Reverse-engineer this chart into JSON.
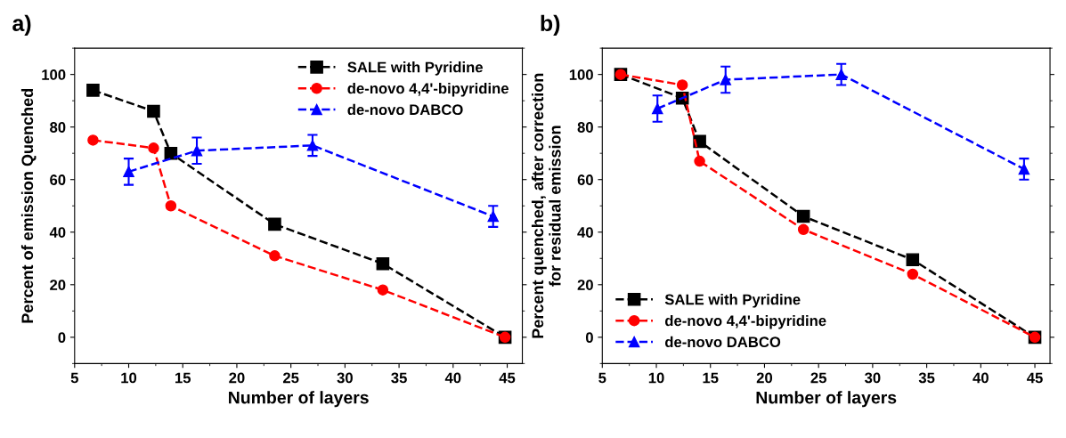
{
  "chart_data": [
    {
      "type": "line",
      "title": "a)",
      "xlabel": "Number of layers",
      "ylabel": "Percent of emission Quenched",
      "xlim": [
        5,
        46.4
      ],
      "xticks": [
        5,
        10,
        15,
        20,
        25,
        30,
        35,
        40,
        45
      ],
      "ylim": [
        -10,
        110
      ],
      "yticks": [
        0,
        20,
        40,
        60,
        80,
        100
      ],
      "legend": "top right",
      "line_style": "dashed",
      "grid": false,
      "series": [
        {
          "name": "SALE with Pyridine",
          "color": "#000000",
          "marker": "square",
          "x": [
            6.7,
            12.3,
            13.9,
            23.5,
            33.5,
            44.8
          ],
          "values": [
            94,
            86,
            70,
            43,
            28,
            0
          ]
        },
        {
          "name": "de-novo 4,4'-bipyridine",
          "color": "#ff0000",
          "marker": "circle",
          "x": [
            6.7,
            12.3,
            13.9,
            23.5,
            33.5,
            44.8
          ],
          "values": [
            75,
            72,
            50,
            31,
            18,
            0
          ]
        },
        {
          "name": "de-novo DABCO",
          "color": "#0000ff",
          "marker": "triangle",
          "x": [
            10.0,
            16.3,
            27.0,
            43.7
          ],
          "values": [
            63,
            71,
            73,
            46
          ],
          "errors": [
            5,
            5,
            4,
            4
          ]
        }
      ]
    },
    {
      "type": "line",
      "title": "b)",
      "xlabel": "Number of layers",
      "ylabel": "Percent quenched, after correction\nfor residual emission",
      "xlim": [
        5,
        46.4
      ],
      "xticks": [
        5,
        10,
        15,
        20,
        25,
        30,
        35,
        40,
        45
      ],
      "ylim": [
        -10,
        110
      ],
      "yticks": [
        0,
        20,
        40,
        60,
        80,
        100
      ],
      "legend": "bottom left",
      "line_style": "dashed",
      "grid": false,
      "series": [
        {
          "name": "SALE with Pyridine",
          "color": "#000000",
          "marker": "square",
          "x": [
            6.7,
            12.4,
            14.0,
            23.6,
            33.7,
            45.0
          ],
          "values": [
            100,
            91,
            74.5,
            46,
            29.5,
            0
          ]
        },
        {
          "name": "de-novo 4,4'-bipyridine",
          "color": "#ff0000",
          "marker": "circle",
          "x": [
            6.7,
            12.4,
            14.0,
            23.6,
            33.7,
            45.0
          ],
          "values": [
            100,
            96,
            67,
            41,
            24,
            0
          ]
        },
        {
          "name": "de-novo DABCO",
          "color": "#0000ff",
          "marker": "triangle",
          "x": [
            10.1,
            16.4,
            27.1,
            44.0
          ],
          "values": [
            87,
            98,
            100,
            64
          ],
          "errors": [
            5,
            5,
            4,
            4
          ]
        }
      ]
    }
  ]
}
